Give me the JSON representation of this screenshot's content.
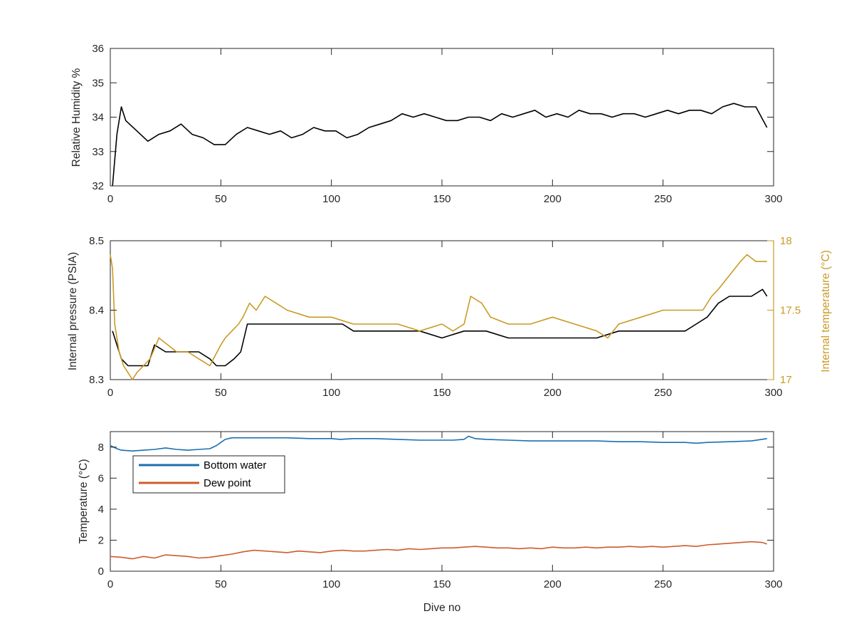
{
  "colors": {
    "black": "#000000",
    "gold": "#c99a25",
    "blue": "#1b6fae",
    "orange": "#cd5c2c",
    "axis": "#262626"
  },
  "chart_data": [
    {
      "type": "line",
      "title": "",
      "xlabel": "",
      "ylabel": "Relative Humidity %",
      "xlim": [
        0,
        300
      ],
      "ylim": [
        32,
        36
      ],
      "xticks": [
        0,
        50,
        100,
        150,
        200,
        250,
        300
      ],
      "yticks": [
        32,
        33,
        34,
        35,
        36
      ],
      "grid": false,
      "series": [
        {
          "color": "#000000",
          "x": [
            1,
            3,
            5,
            7,
            12,
            17,
            22,
            27,
            32,
            37,
            42,
            47,
            52,
            57,
            62,
            67,
            72,
            77,
            82,
            87,
            92,
            97,
            102,
            107,
            112,
            117,
            122,
            127,
            132,
            137,
            142,
            147,
            152,
            157,
            162,
            167,
            172,
            177,
            182,
            187,
            192,
            197,
            202,
            207,
            212,
            217,
            222,
            227,
            232,
            237,
            242,
            247,
            252,
            257,
            262,
            267,
            272,
            277,
            282,
            287,
            292,
            297
          ],
          "y": [
            32.0,
            33.5,
            34.3,
            33.9,
            33.6,
            33.3,
            33.5,
            33.6,
            33.8,
            33.5,
            33.4,
            33.2,
            33.2,
            33.5,
            33.7,
            33.6,
            33.5,
            33.6,
            33.4,
            33.5,
            33.7,
            33.6,
            33.6,
            33.4,
            33.5,
            33.7,
            33.8,
            33.9,
            34.1,
            34.0,
            34.1,
            34.0,
            33.9,
            33.9,
            34.0,
            34.0,
            33.9,
            34.1,
            34.0,
            34.1,
            34.2,
            34.0,
            34.1,
            34.0,
            34.2,
            34.1,
            34.1,
            34.0,
            34.1,
            34.1,
            34.0,
            34.1,
            34.2,
            34.1,
            34.2,
            34.2,
            34.1,
            34.3,
            34.4,
            34.3,
            34.3,
            33.7
          ]
        }
      ]
    },
    {
      "type": "line",
      "title": "",
      "xlabel": "",
      "ylabel": "Internal pressure (PSIA)",
      "ylabel_right": "Internal temperature (°C)",
      "xlim": [
        0,
        300
      ],
      "ylim": [
        8.3,
        8.5
      ],
      "ylim_right": [
        17,
        18
      ],
      "xticks": [
        0,
        50,
        100,
        150,
        200,
        250,
        300
      ],
      "yticks": [
        8.3,
        8.4,
        8.5
      ],
      "yticks_right": [
        17,
        17.5,
        18
      ],
      "ytick_labels_right": [
        "17",
        "17.5",
        "18"
      ],
      "grid": false,
      "series": [
        {
          "axis": "left",
          "color": "#000000",
          "x": [
            1,
            3,
            5,
            8,
            12,
            17,
            20,
            25,
            30,
            35,
            40,
            45,
            48,
            52,
            56,
            59,
            62,
            65,
            70,
            80,
            90,
            100,
            105,
            110,
            120,
            130,
            140,
            150,
            160,
            170,
            180,
            190,
            200,
            210,
            220,
            230,
            240,
            250,
            260,
            265,
            270,
            275,
            280,
            285,
            290,
            295,
            297
          ],
          "y": [
            8.37,
            8.35,
            8.33,
            8.32,
            8.32,
            8.32,
            8.35,
            8.34,
            8.34,
            8.34,
            8.34,
            8.33,
            8.32,
            8.32,
            8.33,
            8.34,
            8.38,
            8.38,
            8.38,
            8.38,
            8.38,
            8.38,
            8.38,
            8.37,
            8.37,
            8.37,
            8.37,
            8.36,
            8.37,
            8.37,
            8.36,
            8.36,
            8.36,
            8.36,
            8.36,
            8.37,
            8.37,
            8.37,
            8.37,
            8.38,
            8.39,
            8.41,
            8.42,
            8.42,
            8.42,
            8.43,
            8.42
          ]
        },
        {
          "axis": "right",
          "color": "#c99a25",
          "x": [
            0,
            1,
            2,
            4,
            6,
            8,
            10,
            12,
            15,
            18,
            22,
            26,
            30,
            35,
            40,
            45,
            50,
            52,
            55,
            58,
            60,
            63,
            66,
            70,
            75,
            80,
            90,
            100,
            110,
            120,
            130,
            140,
            150,
            155,
            160,
            163,
            168,
            172,
            180,
            190,
            200,
            210,
            220,
            225,
            230,
            240,
            250,
            260,
            268,
            272,
            275,
            280,
            285,
            288,
            292,
            297
          ],
          "y": [
            17.9,
            17.8,
            17.4,
            17.2,
            17.1,
            17.05,
            17.0,
            17.05,
            17.1,
            17.15,
            17.3,
            17.25,
            17.2,
            17.2,
            17.15,
            17.1,
            17.25,
            17.3,
            17.35,
            17.4,
            17.45,
            17.55,
            17.5,
            17.6,
            17.55,
            17.5,
            17.45,
            17.45,
            17.4,
            17.4,
            17.4,
            17.35,
            17.4,
            17.35,
            17.4,
            17.6,
            17.55,
            17.45,
            17.4,
            17.4,
            17.45,
            17.4,
            17.35,
            17.3,
            17.4,
            17.45,
            17.5,
            17.5,
            17.5,
            17.6,
            17.65,
            17.75,
            17.85,
            17.9,
            17.85,
            17.85
          ]
        }
      ]
    },
    {
      "type": "line",
      "title": "",
      "xlabel": "Dive no",
      "ylabel": "Temperature (°C)",
      "xlim": [
        0,
        300
      ],
      "ylim": [
        0,
        9
      ],
      "xticks": [
        0,
        50,
        100,
        150,
        200,
        250,
        300
      ],
      "yticks": [
        0,
        2,
        4,
        6,
        8
      ],
      "grid": false,
      "legend_location": "top-left",
      "series": [
        {
          "name": "Bottom water",
          "color": "#1b6fae",
          "x": [
            0,
            3,
            5,
            10,
            15,
            20,
            25,
            30,
            35,
            40,
            45,
            48,
            50,
            52,
            55,
            60,
            70,
            80,
            90,
            100,
            104,
            110,
            120,
            130,
            140,
            150,
            155,
            160,
            162,
            165,
            170,
            180,
            190,
            200,
            210,
            220,
            230,
            240,
            250,
            260,
            265,
            270,
            280,
            290,
            297
          ],
          "y": [
            8.1,
            7.9,
            7.8,
            7.75,
            7.8,
            7.85,
            7.95,
            7.85,
            7.8,
            7.85,
            7.9,
            8.1,
            8.3,
            8.5,
            8.6,
            8.6,
            8.6,
            8.6,
            8.55,
            8.55,
            8.5,
            8.55,
            8.55,
            8.5,
            8.45,
            8.45,
            8.45,
            8.5,
            8.7,
            8.55,
            8.5,
            8.45,
            8.4,
            8.4,
            8.4,
            8.4,
            8.35,
            8.35,
            8.3,
            8.3,
            8.25,
            8.3,
            8.35,
            8.4,
            8.55
          ]
        },
        {
          "name": "Dew point",
          "color": "#cd5c2c",
          "x": [
            0,
            5,
            10,
            15,
            20,
            25,
            30,
            35,
            40,
            45,
            50,
            55,
            60,
            65,
            70,
            75,
            80,
            85,
            90,
            95,
            100,
            105,
            110,
            115,
            120,
            125,
            130,
            135,
            140,
            145,
            150,
            155,
            160,
            165,
            170,
            175,
            180,
            185,
            190,
            195,
            200,
            205,
            210,
            215,
            220,
            225,
            230,
            235,
            240,
            245,
            250,
            255,
            260,
            265,
            270,
            275,
            280,
            285,
            290,
            295,
            297
          ],
          "y": [
            0.95,
            0.9,
            0.8,
            0.95,
            0.85,
            1.05,
            1.0,
            0.95,
            0.85,
            0.9,
            1.0,
            1.1,
            1.25,
            1.35,
            1.3,
            1.25,
            1.2,
            1.3,
            1.25,
            1.2,
            1.3,
            1.35,
            1.3,
            1.3,
            1.35,
            1.4,
            1.35,
            1.45,
            1.4,
            1.45,
            1.5,
            1.5,
            1.55,
            1.6,
            1.55,
            1.5,
            1.5,
            1.45,
            1.5,
            1.45,
            1.55,
            1.5,
            1.5,
            1.55,
            1.5,
            1.55,
            1.55,
            1.6,
            1.55,
            1.6,
            1.55,
            1.6,
            1.65,
            1.6,
            1.7,
            1.75,
            1.8,
            1.85,
            1.9,
            1.85,
            1.75
          ]
        }
      ]
    }
  ]
}
